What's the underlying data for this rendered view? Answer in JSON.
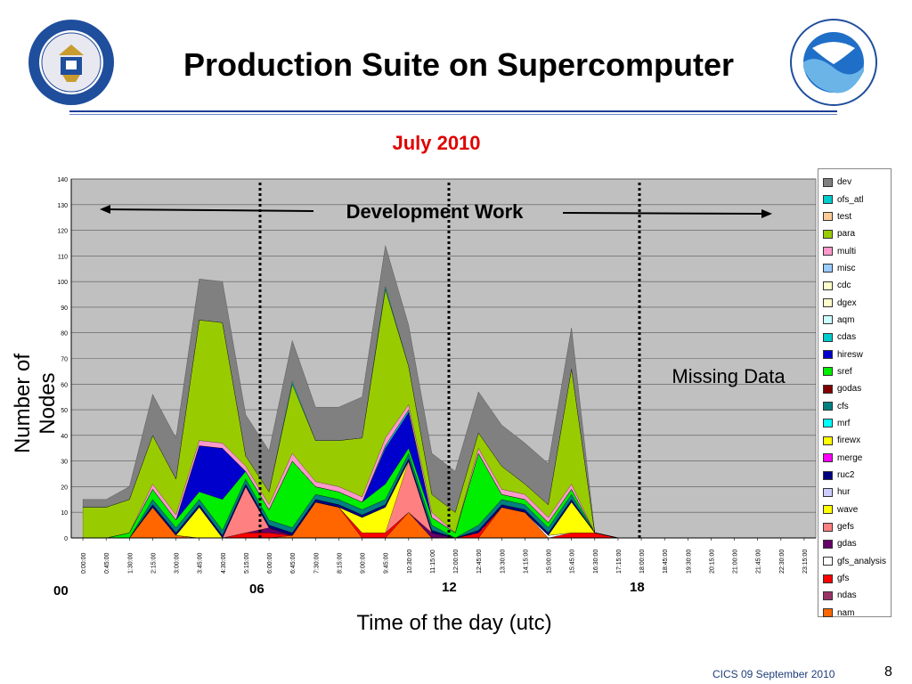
{
  "slide": {
    "title": "Production Suite on Supercomputer",
    "footer": "CICS 09 September 2010",
    "page_number": "8",
    "hour_labels": [
      "00",
      "06",
      "12",
      "18"
    ]
  },
  "chart_data": {
    "type": "area",
    "title": "July 2010",
    "xlabel": "Time of the day (utc)",
    "ylabel": "Number of Nodes",
    "ylim": [
      0,
      140
    ],
    "yticks": [
      0,
      10,
      20,
      30,
      40,
      50,
      60,
      70,
      80,
      90,
      100,
      110,
      120,
      130,
      140
    ],
    "grid": true,
    "legend_position": "right",
    "x": [
      "0:00:00",
      "0:45:00",
      "1:30:00",
      "2:15:00",
      "3:00:00",
      "3:45:00",
      "4:30:00",
      "5:15:00",
      "6:00:00",
      "6:45:00",
      "7:30:00",
      "8:15:00",
      "9:00:00",
      "9:45:00",
      "10:30:00",
      "11:15:00",
      "12:00:00",
      "12:45:00",
      "13:30:00",
      "14:15:00",
      "15:00:00",
      "15:45:00",
      "16:30:00",
      "17:15:00",
      "18:00:00",
      "18:45:00",
      "19:30:00",
      "20:15:00",
      "21:00:00",
      "21:45:00",
      "22:30:00",
      "23:15:00"
    ],
    "stack_order": [
      "nam",
      "ndas",
      "gfs",
      "gfs_analysis",
      "gdas",
      "gefs",
      "wave",
      "hur",
      "ruc2",
      "merge",
      "firewx",
      "mrf",
      "cfs",
      "godas",
      "sref",
      "hiresw",
      "cdas",
      "aqm",
      "dgex",
      "cdc",
      "misc",
      "multi",
      "para",
      "test",
      "ofs_atl",
      "dev"
    ],
    "series": [
      {
        "name": "nam",
        "color": "#ff6600",
        "values": [
          0,
          0,
          0,
          12,
          1,
          0,
          0,
          0,
          0,
          1,
          14,
          12,
          0,
          0,
          10,
          0,
          0,
          0,
          12,
          10,
          0,
          0,
          0,
          0,
          0,
          0,
          0,
          0,
          0,
          0,
          0,
          0
        ]
      },
      {
        "name": "ndas",
        "color": "#993366",
        "values": [
          0,
          0,
          0,
          0,
          0,
          0,
          0,
          0,
          0,
          0,
          0,
          0,
          0,
          0,
          0,
          0,
          0,
          0,
          0,
          0,
          0,
          0,
          0,
          0,
          0,
          0,
          0,
          0,
          0,
          0,
          0,
          0
        ]
      },
      {
        "name": "gfs",
        "color": "#ff0000",
        "values": [
          0,
          0,
          0,
          0,
          0,
          0,
          0,
          2,
          2,
          0,
          0,
          0,
          2,
          2,
          0,
          0,
          0,
          2,
          0,
          0,
          0,
          2,
          2,
          0,
          0,
          0,
          0,
          0,
          0,
          0,
          0,
          0
        ]
      },
      {
        "name": "gfs_analysis",
        "color": "#ffffff",
        "values": [
          0,
          0,
          0,
          0,
          0,
          0,
          0,
          0,
          0,
          0,
          0,
          0,
          0,
          0,
          0,
          0,
          0,
          0,
          0,
          0,
          1,
          0,
          0,
          0,
          0,
          0,
          0,
          0,
          0,
          0,
          0,
          0
        ]
      },
      {
        "name": "gdas",
        "color": "#660066",
        "values": [
          0,
          0,
          0,
          0,
          0,
          0,
          0,
          0,
          2,
          0,
          0,
          0,
          0,
          0,
          0,
          2,
          0,
          0,
          0,
          0,
          0,
          0,
          0,
          0,
          0,
          0,
          0,
          0,
          0,
          0,
          0,
          0
        ]
      },
      {
        "name": "gefs",
        "color": "#ff8080",
        "values": [
          0,
          0,
          0,
          0,
          0,
          0,
          0,
          18,
          0,
          0,
          0,
          0,
          0,
          0,
          20,
          0,
          0,
          0,
          0,
          0,
          0,
          0,
          0,
          0,
          0,
          0,
          0,
          0,
          0,
          0,
          0,
          0
        ]
      },
      {
        "name": "wave",
        "color": "#ffff00",
        "values": [
          0,
          0,
          0,
          0,
          0,
          12,
          0,
          0,
          0,
          0,
          0,
          0,
          6,
          10,
          0,
          0,
          0,
          0,
          0,
          0,
          0,
          12,
          0,
          0,
          0,
          0,
          0,
          0,
          0,
          0,
          0,
          0
        ]
      },
      {
        "name": "hur",
        "color": "#ccccff",
        "values": [
          0,
          0,
          0,
          0,
          0,
          0,
          0,
          0,
          0,
          0,
          0,
          0,
          0,
          0,
          0,
          0,
          0,
          0,
          0,
          0,
          0,
          0,
          0,
          0,
          0,
          0,
          0,
          0,
          0,
          0,
          0,
          0
        ]
      },
      {
        "name": "ruc2",
        "color": "#000080",
        "values": [
          0,
          0,
          0,
          1,
          1,
          1,
          1,
          1,
          1,
          1,
          1,
          1,
          1,
          1,
          1,
          1,
          0,
          1,
          1,
          1,
          1,
          1,
          0,
          0,
          0,
          0,
          0,
          0,
          0,
          0,
          0,
          0
        ]
      },
      {
        "name": "merge",
        "color": "#ff00ff",
        "values": [
          0,
          0,
          0,
          0,
          0,
          0,
          0,
          0,
          0,
          0,
          0,
          0,
          0,
          0,
          0,
          0,
          0,
          0,
          0,
          0,
          0,
          0,
          0,
          0,
          0,
          0,
          0,
          0,
          0,
          0,
          0,
          0
        ]
      },
      {
        "name": "firewx",
        "color": "#ffff00",
        "values": [
          0,
          0,
          0,
          0,
          0,
          0,
          0,
          0,
          0,
          0,
          0,
          0,
          0,
          0,
          0,
          0,
          0,
          0,
          0,
          0,
          0,
          0,
          0,
          0,
          0,
          0,
          0,
          0,
          0,
          0,
          0,
          0
        ]
      },
      {
        "name": "mrf",
        "color": "#00ffff",
        "values": [
          0,
          0,
          0,
          0,
          0,
          0,
          0,
          0,
          0,
          0,
          0,
          0,
          0,
          0,
          0,
          0,
          0,
          0,
          0,
          0,
          0,
          0,
          0,
          0,
          0,
          0,
          0,
          0,
          0,
          0,
          0,
          0
        ]
      },
      {
        "name": "cfs",
        "color": "#008080",
        "values": [
          0,
          0,
          0,
          2,
          2,
          2,
          2,
          2,
          2,
          2,
          2,
          2,
          2,
          2,
          2,
          2,
          0,
          2,
          2,
          2,
          2,
          2,
          0,
          0,
          0,
          0,
          0,
          0,
          0,
          0,
          0,
          0
        ]
      },
      {
        "name": "godas",
        "color": "#800000",
        "values": [
          0,
          0,
          0,
          0,
          0,
          0,
          0,
          0,
          0,
          0,
          0,
          0,
          0,
          0,
          0,
          0,
          0,
          0,
          0,
          0,
          0,
          0,
          0,
          0,
          0,
          0,
          0,
          0,
          0,
          0,
          0,
          0
        ]
      },
      {
        "name": "sref",
        "color": "#00ee00",
        "values": [
          0,
          0,
          2,
          4,
          3,
          3,
          12,
          3,
          4,
          26,
          3,
          3,
          3,
          6,
          2,
          3,
          2,
          28,
          2,
          2,
          2,
          2,
          0,
          0,
          0,
          0,
          0,
          0,
          0,
          0,
          0,
          0
        ]
      },
      {
        "name": "hiresw",
        "color": "#0000cc",
        "values": [
          0,
          0,
          0,
          0,
          0,
          18,
          20,
          0,
          0,
          0,
          0,
          0,
          0,
          14,
          14,
          0,
          0,
          0,
          0,
          0,
          0,
          0,
          0,
          0,
          0,
          0,
          0,
          0,
          0,
          0,
          0,
          0
        ]
      },
      {
        "name": "cdas",
        "color": "#00cccc",
        "values": [
          0,
          0,
          0,
          0,
          0,
          0,
          0,
          0,
          0,
          0,
          0,
          0,
          0,
          1,
          1,
          0,
          0,
          0,
          0,
          0,
          0,
          0,
          0,
          0,
          0,
          0,
          0,
          0,
          0,
          0,
          0,
          0
        ]
      },
      {
        "name": "aqm",
        "color": "#ccffff",
        "values": [
          0,
          0,
          0,
          0,
          0,
          0,
          0,
          0,
          0,
          0,
          0,
          0,
          0,
          0,
          0,
          0,
          0,
          0,
          0,
          0,
          0,
          0,
          0,
          0,
          0,
          0,
          0,
          0,
          0,
          0,
          0,
          0
        ]
      },
      {
        "name": "dgex",
        "color": "#ffffcc",
        "values": [
          0,
          0,
          0,
          0,
          0,
          0,
          0,
          0,
          0,
          0,
          0,
          0,
          0,
          0,
          0,
          0,
          0,
          0,
          0,
          0,
          0,
          0,
          0,
          0,
          0,
          0,
          0,
          0,
          0,
          0,
          0,
          0
        ]
      },
      {
        "name": "cdc",
        "color": "#ffffcc",
        "values": [
          0,
          0,
          0,
          0,
          0,
          0,
          0,
          0,
          0,
          0,
          0,
          0,
          0,
          0,
          0,
          0,
          0,
          0,
          0,
          0,
          0,
          0,
          0,
          0,
          0,
          0,
          0,
          0,
          0,
          0,
          0,
          0
        ]
      },
      {
        "name": "misc",
        "color": "#99ccff",
        "values": [
          0,
          0,
          0,
          0,
          0,
          0,
          0,
          0,
          0,
          0,
          0,
          0,
          0,
          0,
          0,
          0,
          0,
          0,
          0,
          0,
          0,
          0,
          0,
          0,
          0,
          0,
          0,
          0,
          0,
          0,
          0,
          0
        ]
      },
      {
        "name": "multi",
        "color": "#ff99cc",
        "values": [
          0,
          0,
          0,
          2,
          2,
          2,
          2,
          2,
          2,
          3,
          2,
          2,
          2,
          3,
          2,
          2,
          0,
          2,
          2,
          2,
          2,
          2,
          0,
          0,
          0,
          0,
          0,
          0,
          0,
          0,
          0,
          0
        ]
      },
      {
        "name": "para",
        "color": "#99cc00",
        "values": [
          12,
          12,
          13,
          19,
          14,
          47,
          47,
          4,
          5,
          27,
          16,
          18,
          23,
          58,
          15,
          7,
          8,
          6,
          9,
          4,
          5,
          45,
          0,
          0,
          0,
          0,
          0,
          0,
          0,
          0,
          0,
          0
        ]
      },
      {
        "name": "test",
        "color": "#ffcc99",
        "values": [
          0,
          0,
          0,
          0,
          0,
          0,
          0,
          0,
          0,
          0,
          0,
          0,
          0,
          0,
          0,
          0,
          0,
          0,
          0,
          0,
          0,
          0,
          0,
          0,
          0,
          0,
          0,
          0,
          0,
          0,
          0,
          0
        ]
      },
      {
        "name": "ofs_atl",
        "color": "#00cccc",
        "values": [
          0,
          0,
          0,
          0,
          0,
          0,
          0,
          0,
          0,
          1,
          0,
          0,
          0,
          1,
          0,
          0,
          0,
          0,
          0,
          0,
          0,
          0,
          0,
          0,
          0,
          0,
          0,
          0,
          0,
          0,
          0,
          0
        ]
      },
      {
        "name": "dev",
        "color": "#808080",
        "values": [
          3,
          3,
          5,
          16,
          16,
          16,
          16,
          16,
          16,
          16,
          13,
          13,
          16,
          16,
          16,
          16,
          16,
          16,
          16,
          16,
          16,
          16,
          0,
          0,
          0,
          0,
          0,
          0,
          0,
          0,
          0,
          0
        ]
      }
    ],
    "annotations": [
      "Development Work",
      "Missing Data"
    ]
  },
  "legend": {
    "items": [
      {
        "label": "dev",
        "color": "#808080"
      },
      {
        "label": "ofs_atl",
        "color": "#00cccc"
      },
      {
        "label": "test",
        "color": "#ffcc99"
      },
      {
        "label": "para",
        "color": "#99cc00"
      },
      {
        "label": "multi",
        "color": "#ff99cc"
      },
      {
        "label": "misc",
        "color": "#99ccff"
      },
      {
        "label": "cdc",
        "color": "#ffffcc"
      },
      {
        "label": "dgex",
        "color": "#ffffcc"
      },
      {
        "label": "aqm",
        "color": "#ccffff"
      },
      {
        "label": "cdas",
        "color": "#00cccc"
      },
      {
        "label": "hiresw",
        "color": "#0000cc"
      },
      {
        "label": "sref",
        "color": "#00ee00"
      },
      {
        "label": "godas",
        "color": "#800000"
      },
      {
        "label": "cfs",
        "color": "#008080"
      },
      {
        "label": "mrf",
        "color": "#00ffff"
      },
      {
        "label": "firewx",
        "color": "#ffff00"
      },
      {
        "label": "merge",
        "color": "#ff00ff"
      },
      {
        "label": "ruc2",
        "color": "#000080"
      },
      {
        "label": "hur",
        "color": "#ccccff"
      },
      {
        "label": "wave",
        "color": "#ffff00"
      },
      {
        "label": "gefs",
        "color": "#ff8080"
      },
      {
        "label": "gdas",
        "color": "#660066"
      },
      {
        "label": "gfs_analysis",
        "color": "#ffffff"
      },
      {
        "label": "gfs",
        "color": "#ff0000"
      },
      {
        "label": "ndas",
        "color": "#993366"
      },
      {
        "label": "nam",
        "color": "#ff6600"
      }
    ]
  },
  "colors": {
    "plot_bg": "#c0c0c0",
    "title_red": "#e00000",
    "rule_blue": "#1f3d99",
    "doc_blue": "#1f4e9c"
  },
  "logos": {
    "left": "Department of Commerce seal",
    "right": "NOAA logo"
  }
}
